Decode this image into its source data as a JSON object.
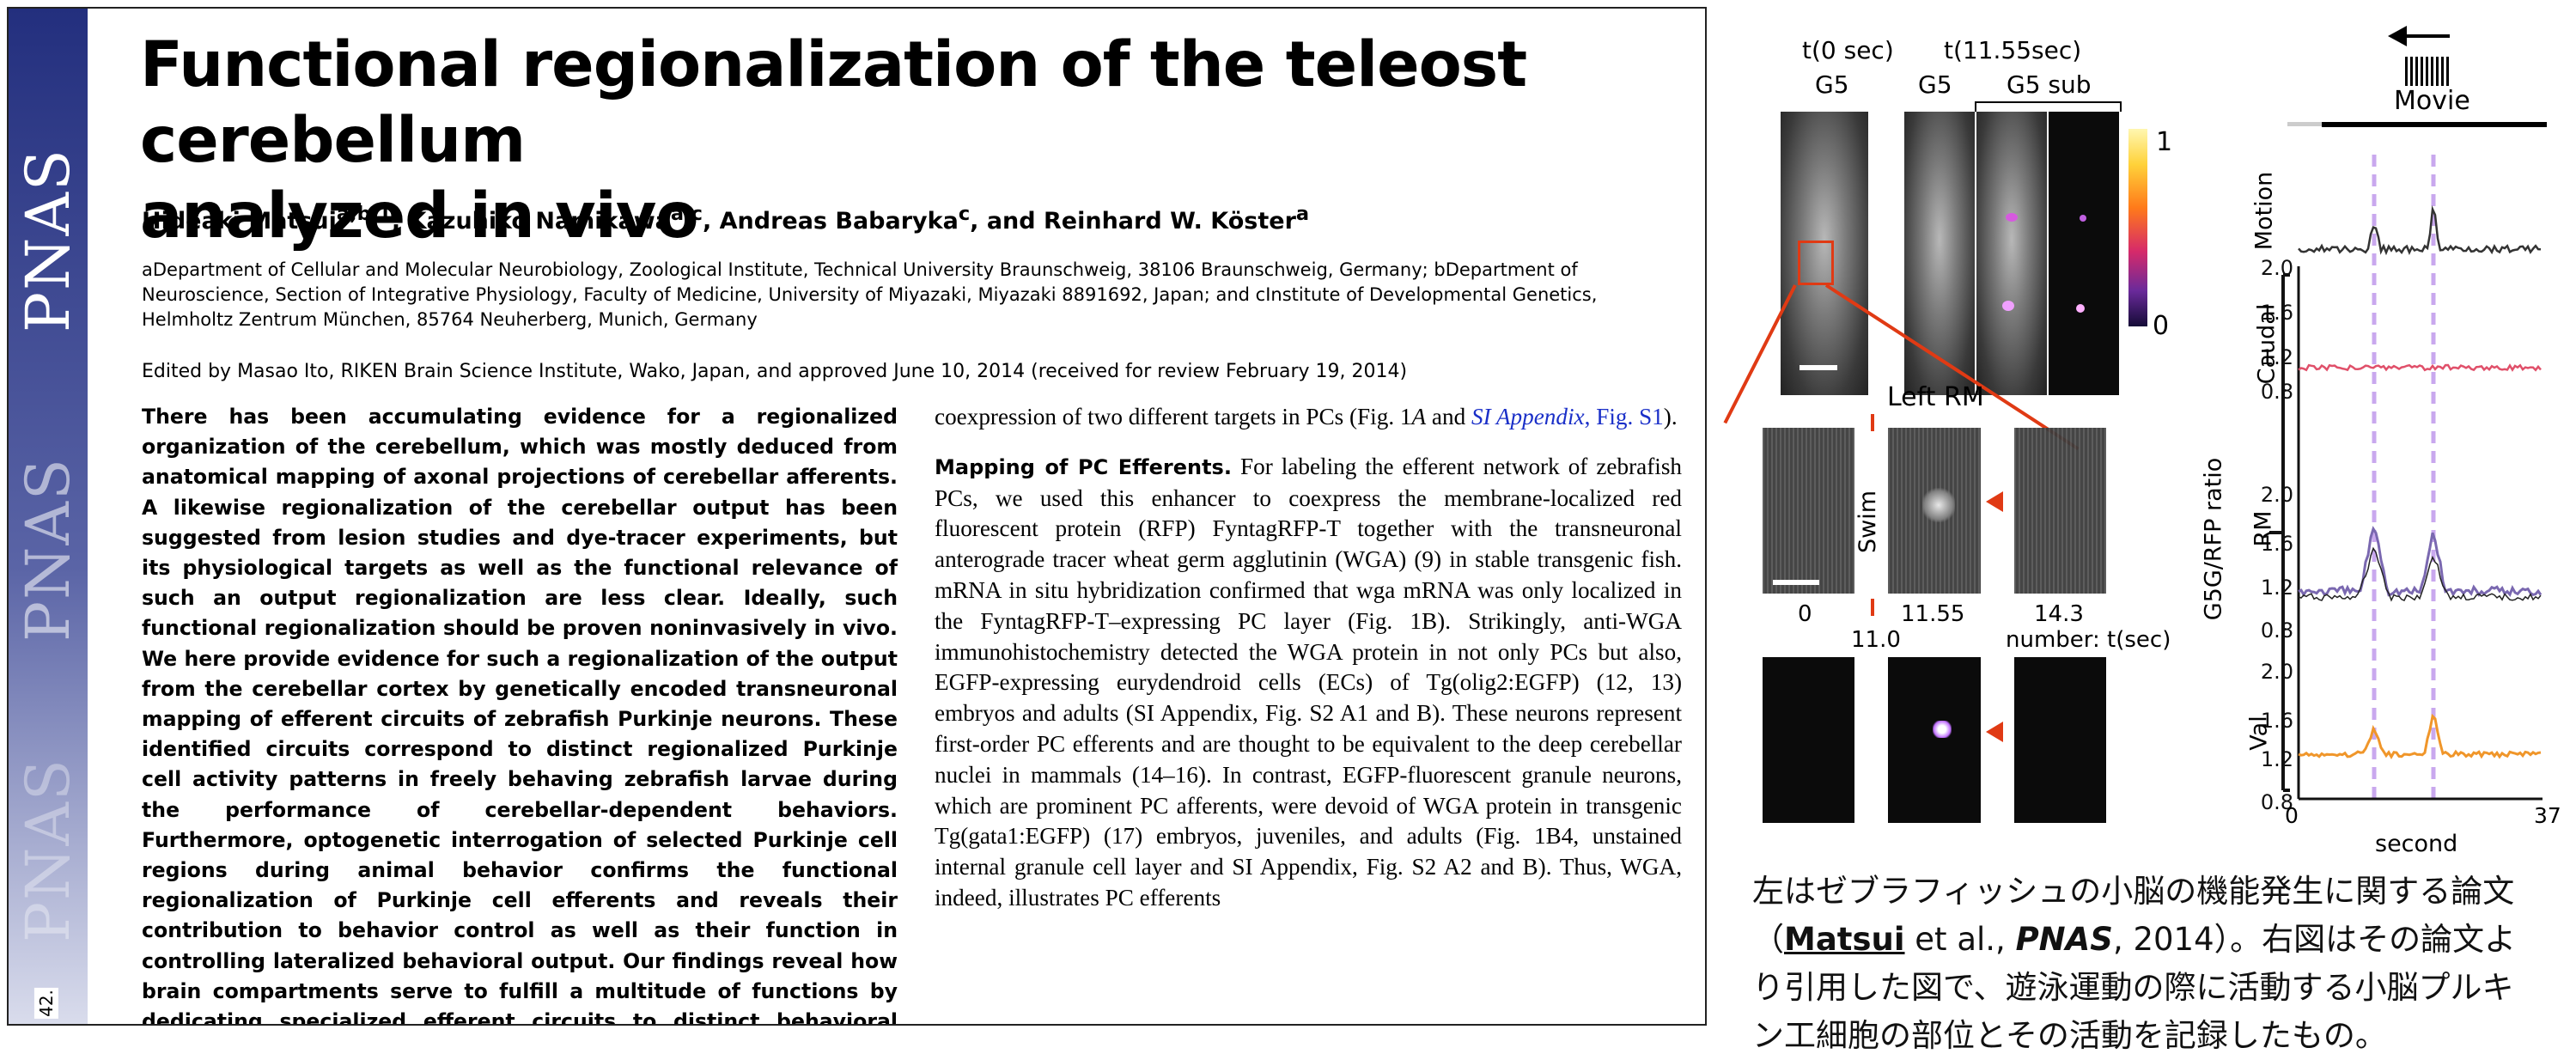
{
  "paper": {
    "journal_logo": "PNAS",
    "page_number": "42.",
    "title_line1": "Functional regionalization of the teleost cerebellum",
    "title_line2": "analyzed in vivo",
    "authors": [
      {
        "name": "Hideaki Matsui",
        "sup": "a,b,1"
      },
      {
        "name": "Kazuhiko Namikawa",
        "sup": "a,c"
      },
      {
        "name": "Andreas Babaryka",
        "sup": "c"
      },
      {
        "name": "Reinhard W. Köster",
        "sup": "a"
      }
    ],
    "affiliations": "aDepartment of Cellular and Molecular Neurobiology, Zoological Institute, Technical University Braunschweig, 38106 Braunschweig, Germany; bDepartment of Neuroscience, Section of Integrative Physiology, Faculty of Medicine, University of Miyazaki, Miyazaki 8891692, Japan; and cInstitute of Developmental Genetics, Helmholtz Zentrum München, 85764 Neuherberg, Munich, Germany",
    "edited_by": "Edited by Masao Ito, RIKEN Brain Science Institute, Wako, Japan, and approved June 10, 2014 (received for review February 19, 2014)",
    "abstract": "There has been accumulating evidence for a regionalized organization of the cerebellum, which was mostly deduced from anatomical mapping of axonal projections of cerebellar afferents. A likewise regionalization of the cerebellar output has been suggested from lesion studies and dye-tracer experiments, but its physiological targets as well as the functional relevance of such an output regionalization are less clear. Ideally, such functional regionalization should be proven noninvasively in vivo. We here provide evidence for such a regionalization of the output from the cerebellar cortex by genetically encoded transneuronal mapping of efferent circuits of zebrafish Purkinje neurons. These identified circuits correspond to distinct regionalized Purkinje cell activity patterns in freely behaving zebrafish larvae during the performance of cerebellar-dependent behaviors. Furthermore, optogenetic interrogation of selected Purkinje cell regions during animal behavior confirms the functional regionalization of Purkinje cell efferents and reveals their contribution to behavior control as well as their function in controlling lateralized behavioral output. Our findings reveal how brain compartments serve to fulfill a multitude of functions by dedicating specialized efferent circuits to distinct behavioral tasks.",
    "body_p1_a": "coexpression of two different targets in PCs (Fig. 1",
    "body_p1_b": "A",
    "body_p1_c": " and ",
    "body_p1_link": "SI Appendix",
    "body_p1_d": ", Fig. S1",
    "body_p1_e": ").",
    "section_head": "Mapping of PC Efferents.",
    "body_p2": " For labeling the efferent network of zebrafish PCs, we used this enhancer to coexpress the membrane-localized red fluorescent protein (RFP) FyntagRFP-T together with the transneuronal anterograde tracer wheat germ agglutinin (WGA) (9) in stable transgenic fish. mRNA in situ hybridization confirmed that wga mRNA was only localized in the FyntagRFP-T–expressing PC layer (Fig. 1B). Strikingly, anti-WGA immunohistochemistry detected the WGA protein in not only PCs but also, EGFP-expressing eurydendroid cells (ECs) of Tg(olig2:EGFP) (12, 13) embryos and adults (SI Appendix, Fig. S2 A1 and B). These neurons represent first-order PC efferents and are thought to be equivalent to the deep cerebellar nuclei in mammals (14–16). In contrast, EGFP-fluorescent granule neurons, which are prominent PC afferents, were devoid of WGA protein in transgenic Tg(gata1:EGFP) (17) embryos, juveniles, and adults (Fig. 1B4, unstained internal granule cell layer and SI Appendix, Fig. S2 A2 and B). Thus, WGA, indeed, illustrates PC efferents"
  },
  "figure": {
    "top_labels": {
      "t0": "t(0 sec)",
      "t1": "t(11.55sec)",
      "g5_a": "G5",
      "g5_b": "G5",
      "g5_sub": "G5 sub",
      "cbar_max": "1",
      "cbar_min": "0"
    },
    "left_rm": "Left RM",
    "swim": "Swim",
    "frame_times": [
      "0",
      "11.55",
      "14.3"
    ],
    "frame_time_mid": "11.0",
    "frame_caption": "number: t(sec)",
    "movie_label": "Movie",
    "trace_labels": {
      "motion": "Motion",
      "caudal": "Caudal",
      "rm": "RM",
      "val": "Val",
      "ratio": "G5G/RFP ratio",
      "xlabel": "second",
      "x0": "0",
      "x1": "37"
    },
    "yticks": [
      "2.0",
      "1.6",
      "1.2",
      "0.8"
    ],
    "colors": {
      "motion": "#333333",
      "caudal": "#e0506a",
      "rm_a": "#7a68b0",
      "rm_b": "#222222",
      "val": "#f0962a",
      "event": "#c9a8ee",
      "accent_red": "#e03a14"
    }
  },
  "caption_jp": {
    "line1": "左はゼブラフィッシュの小脳の機能発生に関する論文",
    "open": "（",
    "author": "Matsui",
    "etal": " et al., ",
    "journal": "PNAS",
    "year": ", 2014）。右図はその論文よ",
    "line3": "り引用した図で、遊泳運動の際に活動する小脳プルキ",
    "line4": "ン工細胞の部位とその活動を記録したもの。"
  }
}
